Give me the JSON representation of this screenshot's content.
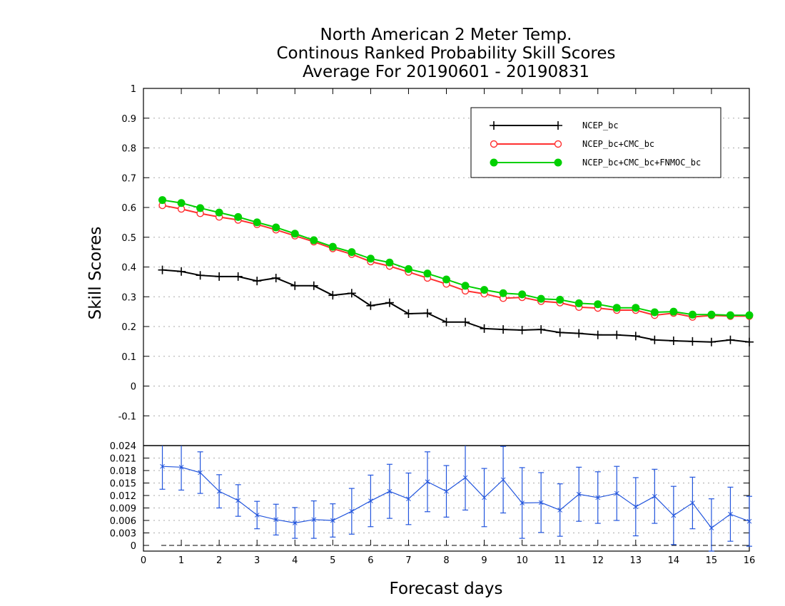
{
  "chart_data": {
    "type": "line",
    "title": [
      "North American 2 Meter Temp.",
      "Continous Ranked Probability Skill Scores",
      "Average For 20190601 - 20190831"
    ],
    "xlabel": "Forecast days",
    "ylabel": "Skill Scores",
    "grid": true,
    "legend_position": "top-right",
    "x_ticks": [
      "0",
      "1",
      "2",
      "3",
      "4",
      "5",
      "6",
      "7",
      "8",
      "9",
      "10",
      "11",
      "12",
      "13",
      "14",
      "15",
      "16"
    ],
    "y_ticks": [
      "-0.1",
      "0",
      "0.1",
      "0.2",
      "0.3",
      "0.4",
      "0.5",
      "0.6",
      "0.7",
      "0.8",
      "0.9",
      "1"
    ],
    "lower_y_ticks": [
      "0",
      "0.003",
      "0.006",
      "0.009",
      "0.012",
      "0.015",
      "0.018",
      "0.021",
      "0.024"
    ],
    "xlim": [
      0,
      16
    ],
    "ylim": [
      -0.2,
      1
    ],
    "lower_ylim": [
      0,
      0.024
    ],
    "x": [
      0.5,
      1,
      1.5,
      2,
      2.5,
      3,
      3.5,
      4,
      4.5,
      5,
      5.5,
      6,
      6.5,
      7,
      7.5,
      8,
      8.5,
      9,
      9.5,
      10,
      10.5,
      11,
      11.5,
      12,
      12.5,
      13,
      13.5,
      14,
      14.5,
      15,
      15.5,
      16
    ],
    "series": [
      {
        "name": "NCEP_bc",
        "color": "#000000",
        "marker": "plus",
        "values": [
          0.39,
          0.385,
          0.372,
          0.368,
          0.368,
          0.353,
          0.363,
          0.337,
          0.337,
          0.305,
          0.312,
          0.27,
          0.28,
          0.243,
          0.245,
          0.215,
          0.215,
          0.193,
          0.19,
          0.188,
          0.19,
          0.18,
          0.177,
          0.172,
          0.172,
          0.168,
          0.155,
          0.152,
          0.15,
          0.148,
          0.155,
          0.148
        ]
      },
      {
        "name": "NCEP_bc+CMC_bc",
        "color": "#ff3030",
        "marker": "open-circle",
        "values": [
          0.607,
          0.595,
          0.58,
          0.568,
          0.558,
          0.543,
          0.525,
          0.505,
          0.485,
          0.462,
          0.443,
          0.418,
          0.403,
          0.383,
          0.363,
          0.343,
          0.32,
          0.31,
          0.295,
          0.298,
          0.285,
          0.28,
          0.265,
          0.262,
          0.255,
          0.255,
          0.238,
          0.245,
          0.232,
          0.237,
          0.235,
          0.235
        ]
      },
      {
        "name": "NCEP_bc+CMC_bc+FNMOC_bc",
        "color": "#00d000",
        "marker": "filled-circle",
        "values": [
          0.625,
          0.615,
          0.598,
          0.583,
          0.568,
          0.55,
          0.533,
          0.512,
          0.49,
          0.468,
          0.45,
          0.428,
          0.415,
          0.393,
          0.378,
          0.358,
          0.337,
          0.323,
          0.312,
          0.308,
          0.293,
          0.29,
          0.278,
          0.275,
          0.263,
          0.263,
          0.248,
          0.25,
          0.24,
          0.24,
          0.238,
          0.238
        ]
      }
    ],
    "difference": {
      "color": "#2255dd",
      "values": [
        0.019,
        0.0188,
        0.0175,
        0.013,
        0.0108,
        0.0073,
        0.0062,
        0.0054,
        0.0062,
        0.006,
        0.0082,
        0.0107,
        0.013,
        0.0112,
        0.0153,
        0.013,
        0.0163,
        0.0115,
        0.0158,
        0.0102,
        0.0103,
        0.0085,
        0.0123,
        0.0115,
        0.0125,
        0.0093,
        0.0118,
        0.0072,
        0.0102,
        0.0042,
        0.0075,
        0.0058
      ],
      "error": [
        0.0055,
        0.0055,
        0.005,
        0.004,
        0.0038,
        0.0033,
        0.0037,
        0.0037,
        0.0045,
        0.004,
        0.0055,
        0.0062,
        0.0065,
        0.0062,
        0.0072,
        0.0062,
        0.0078,
        0.007,
        0.008,
        0.0085,
        0.0072,
        0.0063,
        0.0065,
        0.0062,
        0.0065,
        0.007,
        0.0065,
        0.007,
        0.0062,
        0.007,
        0.0065,
        0.006
      ]
    }
  }
}
